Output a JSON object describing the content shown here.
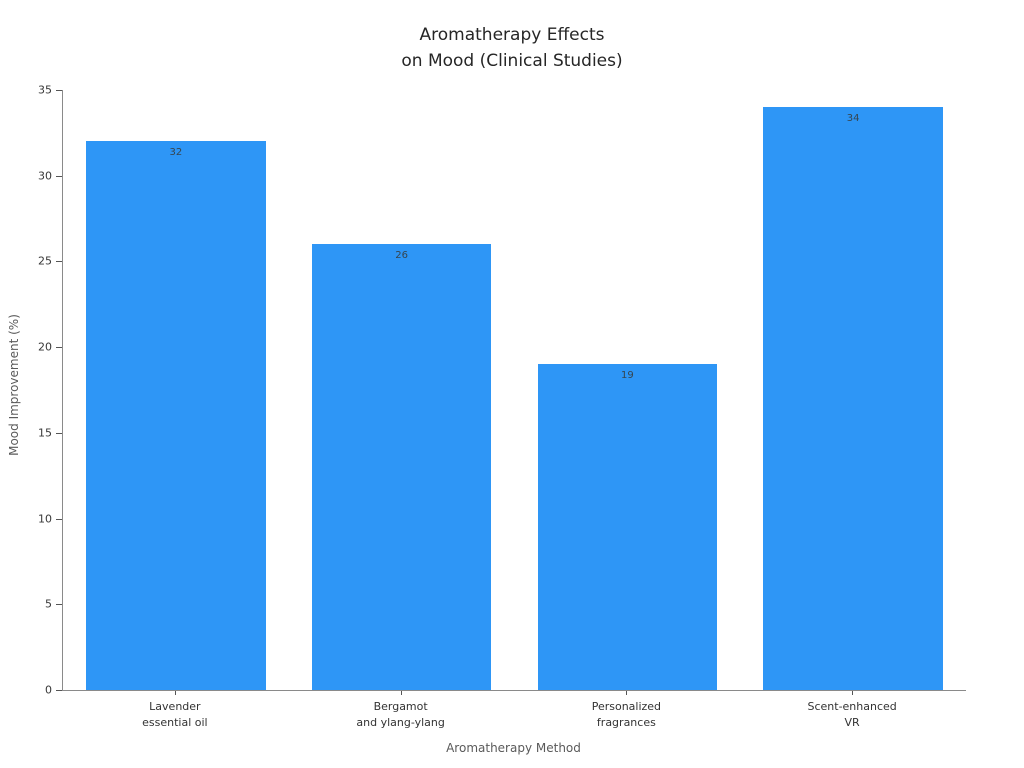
{
  "title": {
    "line1": "Aromatherapy Effects",
    "line2": "on Mood (Clinical Studies)"
  },
  "chart_data": {
    "type": "bar",
    "title": "Aromatherapy Effects\non Mood (Clinical Studies)",
    "categories": [
      "Lavender\nessential oil",
      "Bergamot\nand ylang-ylang",
      "Personalized\nfragrances",
      "Scent-enhanced\nVR"
    ],
    "values": [
      32,
      26,
      19,
      34
    ],
    "value_labels": [
      "32",
      "26",
      "19",
      "34"
    ],
    "xlabel": "Aromatherapy Method",
    "ylabel": "Mood Improvement (%)",
    "ylim": [
      0,
      35
    ],
    "yticks": [
      0,
      5,
      10,
      15,
      20,
      25,
      30,
      35
    ],
    "grid": false,
    "legend": false,
    "bar_color": "#2e96f6",
    "value_label_color": "#36454f",
    "axis_color": "#8a8a8a",
    "tick_label_color": "#383838",
    "axis_title_color": "#5a5a5a"
  }
}
